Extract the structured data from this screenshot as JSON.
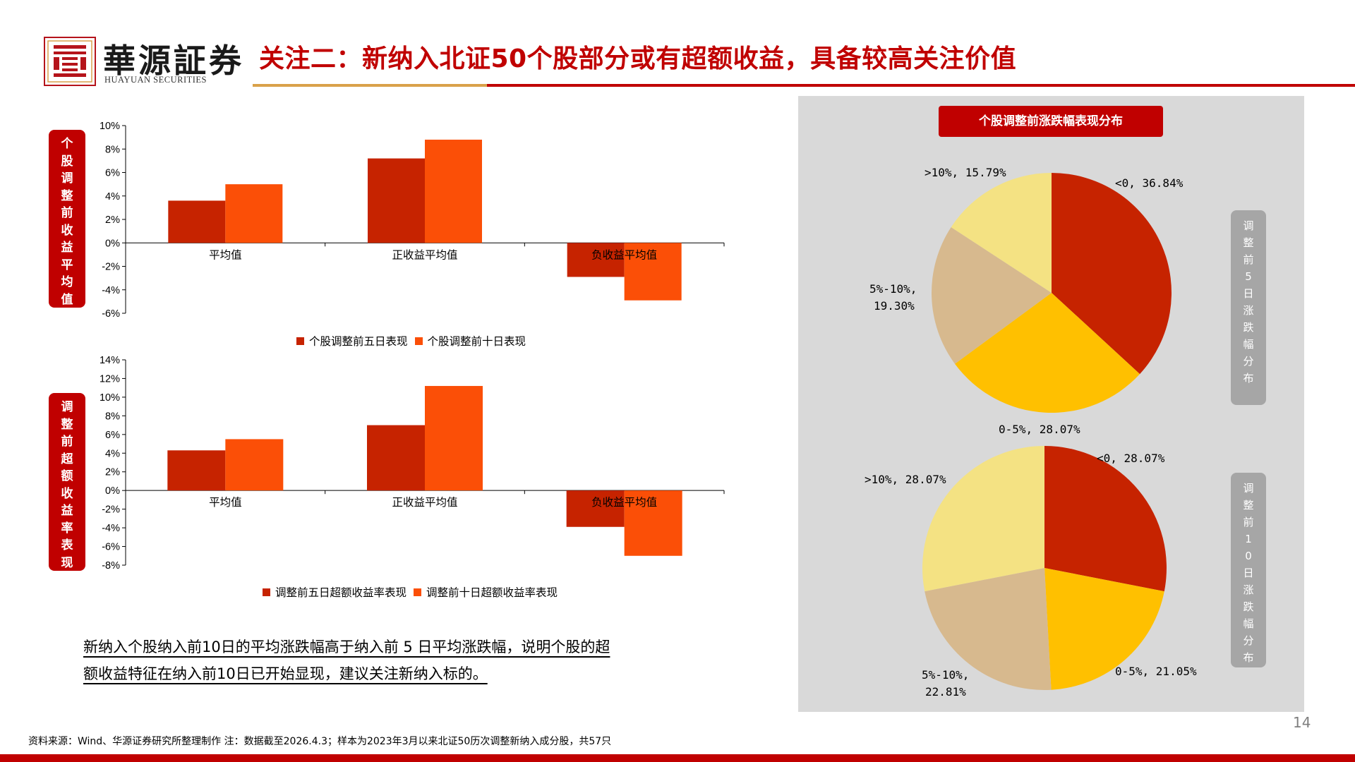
{
  "brand": {
    "name_cn": "華源証券",
    "name_en": "HUAYUAN SECURITIES"
  },
  "title": "关注二：新纳入北证50个股部分或有超额收益，具备较高关注价值",
  "left_label_top": [
    "个",
    "股",
    "调",
    "整",
    "前",
    "收",
    "益",
    "平",
    "均",
    "值"
  ],
  "left_label_bottom": [
    "调",
    "整",
    "前",
    "超",
    "额",
    "收",
    "益",
    "率",
    "表",
    "现"
  ],
  "colors": {
    "dark_red": "#c62300",
    "orange": "#fb4f07",
    "red": "#c00000",
    "pie_red": "#c62300",
    "pie_gold": "#ffc000",
    "pie_tan": "#d7b98e",
    "pie_yellow": "#f4e283"
  },
  "chart_data": [
    {
      "type": "bar",
      "categories": [
        "平均值",
        "正收益平均值",
        "负收益平均值"
      ],
      "series": [
        {
          "name": "个股调整前五日表现",
          "values": [
            3.6,
            7.2,
            -2.9
          ]
        },
        {
          "name": "个股调整前十日表现",
          "values": [
            5.0,
            8.8,
            -4.9
          ]
        }
      ],
      "ylim": [
        -6,
        10
      ],
      "yticks": [
        "10%",
        "8%",
        "6%",
        "4%",
        "2%",
        "0%",
        "-2%",
        "-4%",
        "-6%"
      ],
      "ylabel": "个股调整前收益平均值"
    },
    {
      "type": "bar",
      "categories": [
        "平均值",
        "正收益平均值",
        "负收益平均值"
      ],
      "series": [
        {
          "name": "调整前五日超额收益率表现",
          "values": [
            4.3,
            7.0,
            -3.9
          ]
        },
        {
          "name": "调整前十日超额收益率表现",
          "values": [
            5.5,
            11.2,
            -7.0
          ]
        }
      ],
      "ylim": [
        -8,
        14
      ],
      "yticks": [
        "14%",
        "12%",
        "10%",
        "8%",
        "6%",
        "4%",
        "2%",
        "0%",
        "-2%",
        "-4%",
        "-6%",
        "-8%"
      ],
      "ylabel": "调整前超额收益率表现"
    },
    {
      "type": "pie",
      "title": "个股调整前涨跌幅表现分布",
      "side_label": "调整前5日涨跌幅分布",
      "slices": [
        {
          "label": "<0, 36.84%",
          "value": 36.84
        },
        {
          "label": "0-5%, 28.07%",
          "value": 28.07
        },
        {
          "label": "5%-10%, 19.30%",
          "value": 19.3
        },
        {
          "label": ">10%, 15.79%",
          "value": 15.79
        }
      ]
    },
    {
      "type": "pie",
      "side_label": "调整前10日涨跌幅分布",
      "slices": [
        {
          "label": "<0, 28.07%",
          "value": 28.07
        },
        {
          "label": "0-5%, 21.05%",
          "value": 21.05
        },
        {
          "label": "5%-10%, 22.81%",
          "value": 22.81
        },
        {
          "label": ">10%, 28.07%",
          "value": 28.07
        }
      ]
    }
  ],
  "right_label_top": [
    "调",
    "整",
    "前",
    "5",
    "日",
    "涨",
    "跌",
    "幅",
    "分",
    "布"
  ],
  "right_label_bottom": [
    "调",
    "整",
    "前",
    "1",
    "0",
    "日",
    "涨",
    "跌",
    "幅",
    "分",
    "布"
  ],
  "pie1_labels": {
    "neg": "<0, 36.84%",
    "b0_5": "0-5%, 28.07%",
    "b5_10_a": "5%-10%,",
    "b5_10_b": "19.30%",
    "gt10": ">10%, 15.79%"
  },
  "pie2_labels": {
    "neg": "<0, 28.07%",
    "b0_5": "0-5%, 21.05%",
    "b5_10_a": "5%-10%,",
    "b5_10_b": "22.81%",
    "gt10": ">10%, 28.07%"
  },
  "note_line1": "新纳入个股纳入前10日的平均涨跌幅高于纳入前 5 日平均涨跌幅，说明个股的超",
  "note_line2": "额收益特征在纳入前10日已开始显现，建议关注新纳入标的。",
  "footer": "资料来源：Wind、华源证券研究所整理制作   注：数据截至2026.4.3；样本为2023年3月以来北证50历次调整新纳入成分股，共57只",
  "page_number": "14"
}
